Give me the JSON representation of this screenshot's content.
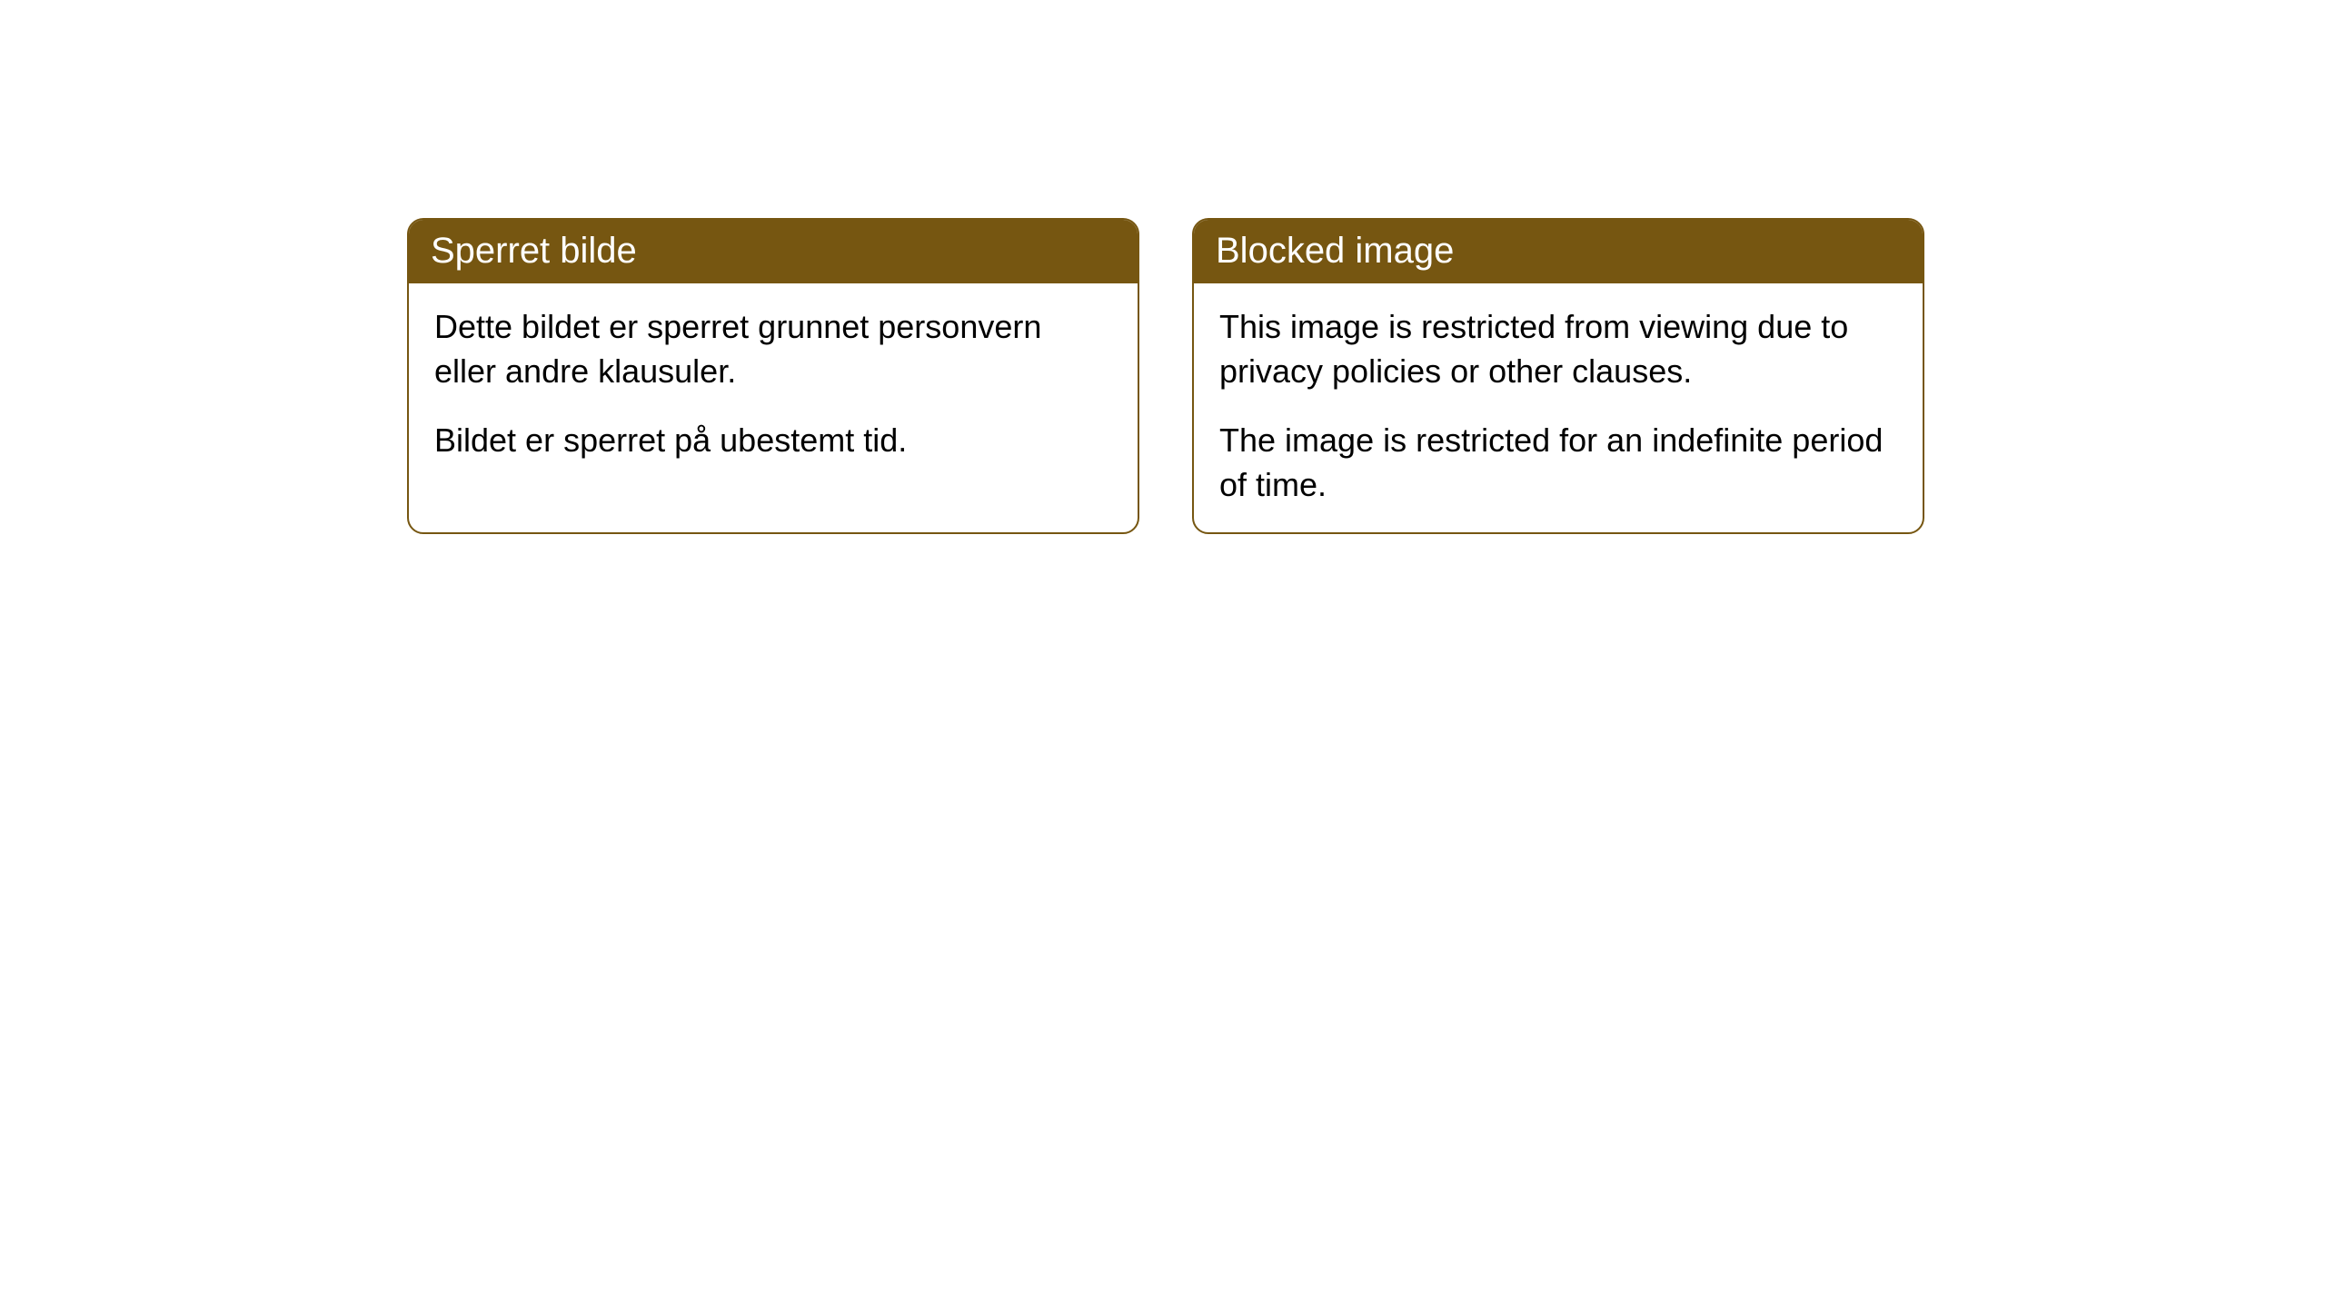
{
  "cards": [
    {
      "title": "Sperret bilde",
      "paragraph1": "Dette bildet er sperret grunnet personvern eller andre klausuler.",
      "paragraph2": "Bildet er sperret på ubestemt tid."
    },
    {
      "title": "Blocked image",
      "paragraph1": "This image is restricted from viewing due to privacy policies or other clauses.",
      "paragraph2": "The image is restricted for an indefinite period of time."
    }
  ],
  "styling": {
    "header_background_color": "#765611",
    "header_text_color": "#ffffff",
    "border_color": "#765611",
    "body_background_color": "#ffffff",
    "body_text_color": "#000000",
    "header_fontsize": 40,
    "body_fontsize": 36,
    "border_radius": 18,
    "border_width": 2
  }
}
